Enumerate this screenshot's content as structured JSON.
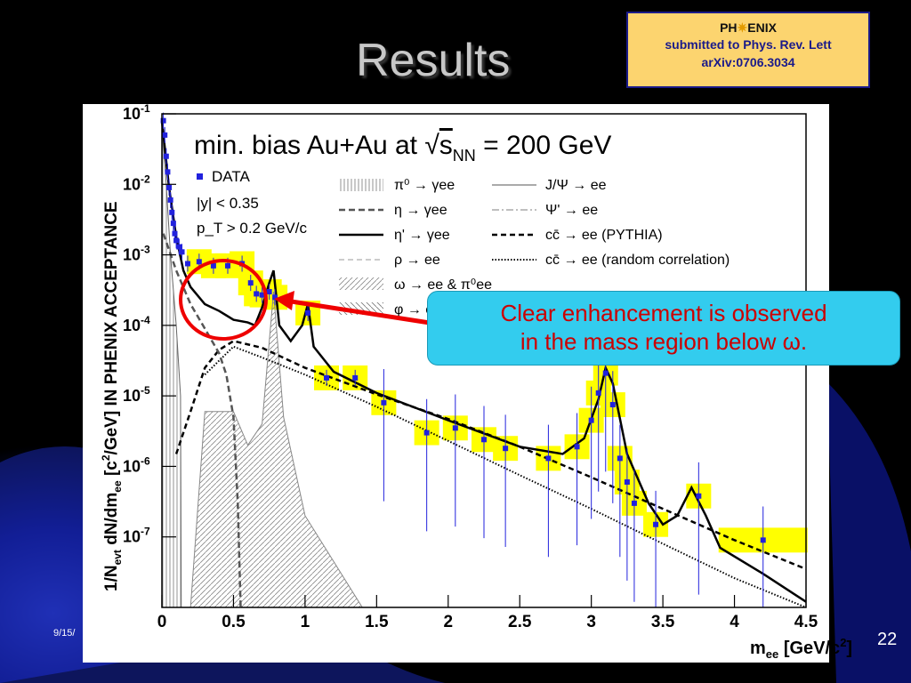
{
  "slide": {
    "title": "Results",
    "date": "9/15/",
    "page_number": "22"
  },
  "phenix_box": {
    "logo_left": "PH",
    "logo_right": "ENIX",
    "line1": "submitted to Phys. Rev. Lett",
    "line2": "arXiv:0706.3034"
  },
  "callout": {
    "line1": "Clear enhancement is observed",
    "line2": "in the mass region below ω."
  },
  "colors": {
    "highlight_yellow": "#ffff00",
    "data_blue": "#2222dd",
    "circle_red": "#ee0000",
    "callout_bg": "#33ccee",
    "callout_text": "#cc0000"
  },
  "chart_data": {
    "type": "scatter",
    "title": "min. bias Au+Au at √s_NN = 200 GeV",
    "title_parts": [
      "min. bias Au+Au at ",
      "s",
      "NN",
      " = 200 GeV"
    ],
    "xlabel": "m_ee [GeV/c²]",
    "xlabel_parts": [
      "m",
      "ee",
      " [GeV/c",
      "2",
      "]"
    ],
    "ylabel": "1/N_evt dN/dm_ee [c²/GeV] IN PHENIX ACCEPTANCE",
    "ylabel_parts": [
      "1/N",
      "evt",
      " dN/dm",
      "ee",
      " [c",
      "2",
      "/GeV] IN PHENIX ACCEPTANCE"
    ],
    "xlim": [
      0,
      4.5
    ],
    "ylim": [
      1e-08,
      0.1
    ],
    "y_scale": "log",
    "x_ticks": [
      "0",
      "0.5",
      "1",
      "1.5",
      "2",
      "2.5",
      "3",
      "3.5",
      "4",
      "4.5"
    ],
    "y_ticks": [
      {
        "base": "10",
        "exp": "-7",
        "value": 1e-07
      },
      {
        "base": "10",
        "exp": "-6",
        "value": 1e-06
      },
      {
        "base": "10",
        "exp": "-5",
        "value": 1e-05
      },
      {
        "base": "10",
        "exp": "-4",
        "value": 0.0001
      },
      {
        "base": "10",
        "exp": "-3",
        "value": 0.001
      },
      {
        "base": "10",
        "exp": "-2",
        "value": 0.01
      },
      {
        "base": "10",
        "exp": "-1",
        "value": 0.1
      }
    ],
    "data_legend": [
      "DATA",
      "|y| < 0.35",
      "p_T > 0.2 GeV/c"
    ],
    "legend_entries": [
      {
        "label": "π⁰ → γee",
        "style": "hatch-vertical"
      },
      {
        "label": "η → γee",
        "style": "dashed-dark"
      },
      {
        "label": "η' → γee",
        "style": "solid-black"
      },
      {
        "label": "ρ → ee",
        "style": "dashed-light"
      },
      {
        "label": "ω → ee & π⁰ee",
        "style": "hatch-diagonal"
      },
      {
        "label": "φ → ee",
        "style": "hatch-cross"
      },
      {
        "label": "J/Ψ → ee",
        "style": "solid-gray"
      },
      {
        "label": "Ψ' → ee",
        "style": "dashdot-gray"
      },
      {
        "label": "cc̄ → ee (PYTHIA)",
        "style": "dashed-black"
      },
      {
        "label": "cc̄ → ee (random correlation)",
        "style": "dotted-black"
      }
    ],
    "data_points": [
      {
        "x": 0.01,
        "y": 0.08
      },
      {
        "x": 0.02,
        "y": 0.05
      },
      {
        "x": 0.03,
        "y": 0.025
      },
      {
        "x": 0.04,
        "y": 0.015
      },
      {
        "x": 0.05,
        "y": 0.009
      },
      {
        "x": 0.06,
        "y": 0.006
      },
      {
        "x": 0.07,
        "y": 0.004
      },
      {
        "x": 0.08,
        "y": 0.0028
      },
      {
        "x": 0.09,
        "y": 0.002
      },
      {
        "x": 0.1,
        "y": 0.0016
      },
      {
        "x": 0.12,
        "y": 0.0013
      },
      {
        "x": 0.14,
        "y": 0.0011
      },
      {
        "x": 0.18,
        "y": 0.00075
      },
      {
        "x": 0.26,
        "y": 0.0008
      },
      {
        "x": 0.36,
        "y": 0.0007
      },
      {
        "x": 0.46,
        "y": 0.0007
      },
      {
        "x": 0.56,
        "y": 0.00075
      },
      {
        "x": 0.62,
        "y": 0.0004
      },
      {
        "x": 0.66,
        "y": 0.00028
      },
      {
        "x": 0.7,
        "y": 0.00027
      },
      {
        "x": 0.75,
        "y": 0.0003
      },
      {
        "x": 0.79,
        "y": 0.00025
      },
      {
        "x": 1.02,
        "y": 0.00015
      },
      {
        "x": 1.15,
        "y": 1.8e-05
      },
      {
        "x": 1.35,
        "y": 1.8e-05
      },
      {
        "x": 1.55,
        "y": 8e-06
      },
      {
        "x": 1.85,
        "y": 3e-06
      },
      {
        "x": 2.05,
        "y": 3.5e-06
      },
      {
        "x": 2.25,
        "y": 2.4e-06
      },
      {
        "x": 2.4,
        "y": 1.8e-06
      },
      {
        "x": 2.7,
        "y": 1.3e-06
      },
      {
        "x": 2.9,
        "y": 1.9e-06
      },
      {
        "x": 3.0,
        "y": 4.5e-06
      },
      {
        "x": 3.05,
        "y": 1.1e-05
      },
      {
        "x": 3.1,
        "y": 2.1e-05
      },
      {
        "x": 3.15,
        "y": 7.5e-06
      },
      {
        "x": 3.2,
        "y": 1.3e-06
      },
      {
        "x": 3.25,
        "y": 6e-07
      },
      {
        "x": 3.3,
        "y": 3e-07
      },
      {
        "x": 3.45,
        "y": 1.5e-07
      },
      {
        "x": 3.75,
        "y": 3.8e-07
      },
      {
        "x": 4.2,
        "y": 9e-08
      }
    ],
    "curves": {
      "cocktail_total": [
        [
          0,
          0.08
        ],
        [
          0.05,
          0.009
        ],
        [
          0.1,
          0.0018
        ],
        [
          0.15,
          0.0006
        ],
        [
          0.2,
          0.00035
        ],
        [
          0.3,
          0.0002
        ],
        [
          0.4,
          0.00016
        ],
        [
          0.5,
          0.00012
        ],
        [
          0.6,
          0.00011
        ],
        [
          0.65,
          0.0001
        ],
        [
          0.7,
          0.00018
        ],
        [
          0.75,
          0.0004
        ],
        [
          0.78,
          0.0006
        ],
        [
          0.82,
          0.0001
        ],
        [
          0.9,
          6e-05
        ],
        [
          0.98,
          0.0001
        ],
        [
          1.02,
          0.0002
        ],
        [
          1.06,
          5e-05
        ],
        [
          1.2,
          2.2e-05
        ],
        [
          1.5,
          1.1e-05
        ],
        [
          2.0,
          4.5e-06
        ],
        [
          2.5,
          1.9e-06
        ],
        [
          2.8,
          1.5e-06
        ],
        [
          2.95,
          2.5e-06
        ],
        [
          3.05,
          9e-06
        ],
        [
          3.1,
          2.5e-05
        ],
        [
          3.15,
          1.5e-05
        ],
        [
          3.25,
          1.5e-06
        ],
        [
          3.4,
          3e-07
        ],
        [
          3.5,
          1.5e-07
        ],
        [
          3.6,
          2e-07
        ],
        [
          3.7,
          5e-07
        ],
        [
          3.8,
          2e-07
        ],
        [
          3.9,
          7e-08
        ],
        [
          4.2,
          3e-08
        ],
        [
          4.5,
          1.2e-08
        ]
      ],
      "charm_pythia": [
        [
          0.1,
          1.5e-06
        ],
        [
          0.2,
          6e-06
        ],
        [
          0.3,
          2.5e-05
        ],
        [
          0.4,
          4.5e-05
        ],
        [
          0.5,
          6e-05
        ],
        [
          0.7,
          4.8e-05
        ],
        [
          1.0,
          2.5e-05
        ],
        [
          1.5,
          1.05e-05
        ],
        [
          2.0,
          4.7e-06
        ],
        [
          2.5,
          1.9e-06
        ],
        [
          3.0,
          7e-07
        ],
        [
          3.5,
          2.5e-07
        ],
        [
          4.0,
          9e-08
        ],
        [
          4.5,
          3.5e-08
        ]
      ],
      "charm_random": [
        [
          0.3,
          2e-05
        ],
        [
          0.5,
          5e-05
        ],
        [
          0.7,
          3.5e-05
        ],
        [
          1.0,
          2e-05
        ],
        [
          1.5,
          7e-06
        ],
        [
          2.0,
          2.3e-06
        ],
        [
          2.5,
          7.5e-07
        ],
        [
          3.0,
          2.5e-07
        ],
        [
          3.5,
          8e-08
        ],
        [
          4.0,
          2.6e-08
        ],
        [
          4.5,
          1e-08
        ]
      ],
      "eta_dalitz": [
        [
          0.01,
          0.002
        ],
        [
          0.1,
          0.0006
        ],
        [
          0.2,
          0.0002
        ],
        [
          0.3,
          9e-05
        ],
        [
          0.4,
          4e-05
        ],
        [
          0.45,
          2e-05
        ],
        [
          0.5,
          5e-06
        ],
        [
          0.53,
          3e-07
        ],
        [
          0.55,
          1e-08
        ]
      ]
    },
    "grid": false,
    "legend_position": "top"
  }
}
